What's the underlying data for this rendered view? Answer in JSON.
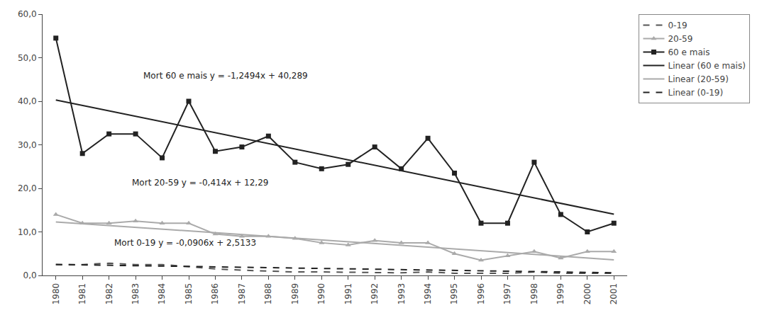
{
  "chart_data": {
    "type": "line",
    "categories": [
      "1980",
      "1981",
      "1982",
      "1983",
      "1984",
      "1985",
      "1986",
      "1987",
      "1988",
      "1989",
      "1990",
      "1991",
      "1992",
      "1993",
      "1994",
      "1995",
      "1996",
      "1997",
      "1998",
      "1999",
      "2000",
      "2001"
    ],
    "series": [
      {
        "name": "0-19",
        "color": "#555555",
        "line_style": "dashed",
        "values": [
          2.5,
          2.5,
          2.8,
          2.5,
          2.5,
          2.0,
          1.5,
          1.2,
          1.0,
          0.8,
          0.8,
          0.7,
          0.7,
          0.6,
          0.8,
          0.5,
          0.5,
          0.5,
          0.8,
          0.5,
          0.5,
          0.5
        ]
      },
      {
        "name": "20-59",
        "color": "#aaaaaa",
        "line_style": "solid",
        "marker": "triangle-up",
        "values": [
          14.0,
          12.0,
          12.0,
          12.5,
          12.0,
          12.0,
          9.5,
          9.0,
          9.0,
          8.5,
          7.5,
          7.0,
          8.0,
          7.5,
          7.5,
          5.0,
          3.5,
          4.5,
          5.5,
          4.0,
          5.5,
          5.5
        ]
      },
      {
        "name": "60 e mais",
        "color": "#222222",
        "line_style": "solid",
        "marker": "square",
        "values": [
          54.5,
          28.0,
          32.5,
          32.5,
          27.0,
          40.0,
          28.5,
          29.5,
          32.0,
          26.0,
          24.5,
          25.5,
          29.5,
          24.5,
          31.5,
          23.5,
          12.0,
          12.0,
          26.0,
          14.0,
          10.0,
          12.0
        ]
      },
      {
        "name": "Linear (60 e mais)",
        "color": "#222222",
        "line_style": "solid",
        "values": [
          40.289,
          39.0396,
          37.7902,
          36.5408,
          35.2914,
          34.042,
          32.7926,
          31.5432,
          30.2938,
          29.0444,
          27.795,
          26.5456,
          25.2962,
          24.0468,
          22.7974,
          21.548,
          20.2986,
          19.0492,
          17.7998,
          16.5504,
          15.301,
          14.0516
        ]
      },
      {
        "name": "Linear (20-59)",
        "color": "#aaaaaa",
        "line_style": "solid",
        "values": [
          12.29,
          11.876,
          11.462,
          11.048,
          10.634,
          10.22,
          9.806,
          9.392,
          8.978,
          8.564,
          8.15,
          7.736,
          7.322,
          6.908,
          6.494,
          6.08,
          5.666,
          5.252,
          4.838,
          4.424,
          4.01,
          3.596
        ]
      },
      {
        "name": "Linear (0-19)",
        "color": "#222222",
        "line_style": "dashed",
        "values": [
          2.5133,
          2.4227,
          2.3321,
          2.2415,
          2.1509,
          2.0603,
          1.9697,
          1.8791,
          1.7885,
          1.6979,
          1.6073,
          1.5167,
          1.4261,
          1.3355,
          1.2449,
          1.1543,
          1.0637,
          0.9731,
          0.8825,
          0.7919,
          0.7013,
          0.6107
        ]
      }
    ],
    "ylim": [
      0,
      60
    ],
    "yticks": [
      {
        "value": 0,
        "label": "0,0"
      },
      {
        "value": 10,
        "label": "10,0"
      },
      {
        "value": 20,
        "label": "20,0"
      },
      {
        "value": 30,
        "label": "30,0"
      },
      {
        "value": 40,
        "label": "40,0"
      },
      {
        "value": 50,
        "label": "50,0"
      },
      {
        "value": 60,
        "label": "60,0"
      }
    ],
    "annotations": [
      "Mort 60 e mais y = -1,2494x + 40,289",
      "Mort 20-59 y = -0,414x + 12,29",
      "Mort 0-19 y = -0,0906x + 2,5133"
    ],
    "grid": false,
    "legend": "right"
  }
}
